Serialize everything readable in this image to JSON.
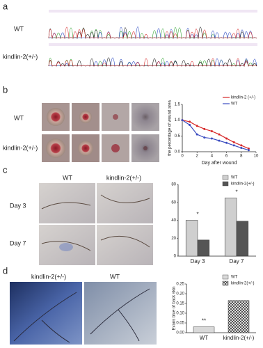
{
  "panels": {
    "a": {
      "letter": "a",
      "rows": [
        "WT",
        "kindlin-2(+/-)"
      ]
    },
    "b": {
      "letter": "b",
      "rows": [
        "WT",
        "kindlin-2(+/-)"
      ]
    },
    "c": {
      "letter": "c",
      "columns": [
        "WT",
        "kindlin-2(+/-)"
      ],
      "rows": [
        "Day 3",
        "Day 7"
      ]
    },
    "d": {
      "letter": "d",
      "columns": [
        "kindlin-2(+/-)",
        "WT"
      ]
    }
  },
  "chart_data": [
    {
      "type": "line",
      "y_label": "the percentage of wound area",
      "x_label": "Day after wound",
      "x": [
        0,
        1,
        2,
        3,
        4,
        5,
        6,
        7,
        8,
        9
      ],
      "series": [
        {
          "name": "kindlin-2 (+/-)",
          "color": "#d62728",
          "values": [
            1.0,
            0.95,
            0.82,
            0.72,
            0.65,
            0.55,
            0.42,
            0.3,
            0.2,
            0.1
          ]
        },
        {
          "name": "WT",
          "color": "#3b4cc0",
          "values": [
            1.0,
            0.85,
            0.55,
            0.45,
            0.42,
            0.35,
            0.28,
            0.2,
            0.12,
            0.05
          ]
        }
      ],
      "xlim": [
        0,
        10
      ],
      "xticks": [
        0,
        2,
        4,
        6,
        8,
        10
      ],
      "ylim": [
        0,
        1.5
      ],
      "yticks": [
        {
          "value": 0,
          "label": "0.0"
        },
        {
          "value": 0.5,
          "label": "0.5"
        },
        {
          "value": 1,
          "label": "1.0"
        },
        {
          "value": 1.5,
          "label": "1.5"
        }
      ],
      "legend": "top-right"
    },
    {
      "type": "bar",
      "categories": [
        "Day 3",
        "Day 7"
      ],
      "series": [
        {
          "name": "WT",
          "color": "#cfcfcf",
          "values": [
            40,
            65
          ]
        },
        {
          "name": "kindlin-2(+/-)",
          "color": "#555555",
          "values": [
            18,
            39
          ]
        }
      ],
      "ylim": [
        0,
        80
      ],
      "yticks": [
        0,
        20,
        40,
        60,
        80
      ],
      "annotations": [
        "*",
        "*"
      ],
      "legend": "top-right"
    },
    {
      "type": "bar",
      "y_label": "Evans blue of back skin",
      "categories": [
        "WT",
        "kindlin-2(+/-)"
      ],
      "series": [
        {
          "name": "WT",
          "color": "#d9d9d9",
          "values": [
            0.03,
            null
          ]
        },
        {
          "name": "kindlin-2(+/-)",
          "color": "#444444",
          "pattern": "hatch",
          "values": [
            null,
            0.165
          ]
        }
      ],
      "ylim": [
        0,
        0.25
      ],
      "yticks": [
        {
          "value": 0,
          "label": "0.00"
        },
        {
          "value": 0.05,
          "label": "0.05"
        },
        {
          "value": 0.1,
          "label": "0.10"
        },
        {
          "value": 0.15,
          "label": "0.15"
        },
        {
          "value": 0.2,
          "label": "0.20"
        },
        {
          "value": 0.25,
          "label": "0.25"
        }
      ],
      "annotations": [
        "**"
      ],
      "legend": "top-right"
    }
  ]
}
